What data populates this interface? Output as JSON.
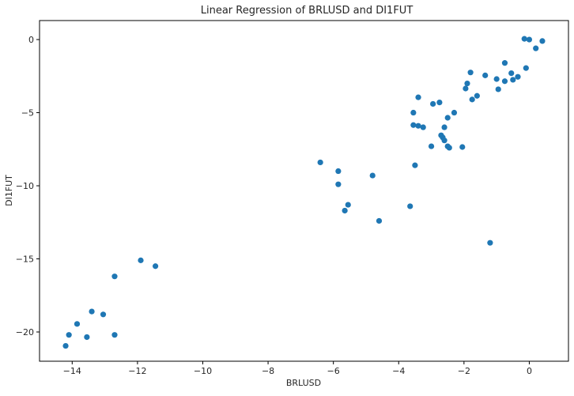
{
  "chart_data": {
    "type": "scatter",
    "title": "Linear Regression of BRLUSD and DI1FUT",
    "xlabel": "BRLUSD",
    "ylabel": "DI1FUT",
    "xlim": [
      -15,
      1.2
    ],
    "ylim": [
      -22,
      1.3
    ],
    "xticks": [
      -14,
      -12,
      -10,
      -8,
      -6,
      -4,
      -2,
      0
    ],
    "yticks": [
      0,
      -5,
      -10,
      -15,
      -20
    ],
    "grid": false,
    "legend": "none",
    "color": "#1f77b4",
    "points": [
      [
        -14.2,
        -20.95
      ],
      [
        -14.1,
        -20.2
      ],
      [
        -13.85,
        -19.45
      ],
      [
        -13.55,
        -20.35
      ],
      [
        -13.4,
        -18.6
      ],
      [
        -13.05,
        -18.8
      ],
      [
        -12.7,
        -20.2
      ],
      [
        -12.7,
        -16.2
      ],
      [
        -11.9,
        -15.1
      ],
      [
        -11.45,
        -15.5
      ],
      [
        -6.4,
        -8.4
      ],
      [
        -5.85,
        -9.0
      ],
      [
        -5.85,
        -9.9
      ],
      [
        -5.65,
        -11.7
      ],
      [
        -5.55,
        -11.3
      ],
      [
        -4.8,
        -9.3
      ],
      [
        -4.6,
        -12.4
      ],
      [
        -3.65,
        -11.4
      ],
      [
        -3.55,
        -5.0
      ],
      [
        -3.55,
        -5.85
      ],
      [
        -3.5,
        -8.6
      ],
      [
        -3.4,
        -3.95
      ],
      [
        -3.4,
        -5.9
      ],
      [
        -3.25,
        -6.0
      ],
      [
        -3.0,
        -7.3
      ],
      [
        -2.95,
        -4.4
      ],
      [
        -2.75,
        -4.3
      ],
      [
        -2.7,
        -6.55
      ],
      [
        -2.65,
        -6.7
      ],
      [
        -2.6,
        -6.0
      ],
      [
        -2.6,
        -6.9
      ],
      [
        -2.5,
        -5.35
      ],
      [
        -2.5,
        -7.3
      ],
      [
        -2.45,
        -7.4
      ],
      [
        -2.3,
        -5.0
      ],
      [
        -2.05,
        -7.35
      ],
      [
        -1.95,
        -3.35
      ],
      [
        -1.9,
        -3.0
      ],
      [
        -1.8,
        -2.25
      ],
      [
        -1.75,
        -4.1
      ],
      [
        -1.6,
        -3.85
      ],
      [
        -1.35,
        -2.45
      ],
      [
        -1.2,
        -13.9
      ],
      [
        -1.0,
        -2.7
      ],
      [
        -0.95,
        -3.4
      ],
      [
        -0.75,
        -1.6
      ],
      [
        -0.75,
        -2.85
      ],
      [
        -0.55,
        -2.3
      ],
      [
        -0.5,
        -2.75
      ],
      [
        -0.35,
        -2.55
      ],
      [
        -0.15,
        0.05
      ],
      [
        -0.1,
        -1.95
      ],
      [
        0.0,
        0.0
      ],
      [
        0.2,
        -0.6
      ],
      [
        0.4,
        -0.1
      ]
    ]
  }
}
